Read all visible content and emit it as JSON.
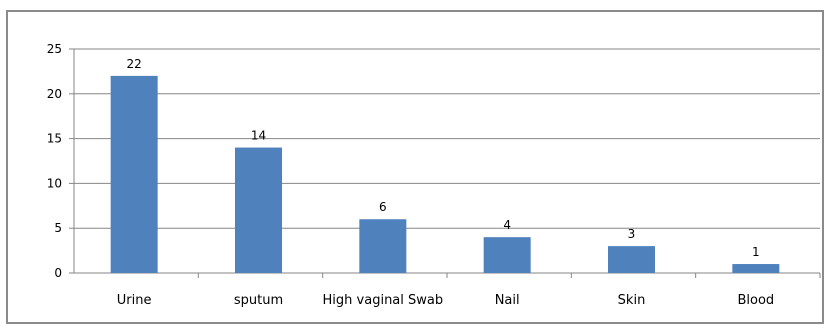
{
  "chart_data": {
    "type": "bar",
    "categories": [
      "Urine",
      "sputum",
      "High vaginal Swab",
      "Nail",
      "Skin",
      "Blood"
    ],
    "values": [
      22,
      14,
      6,
      4,
      3,
      1
    ],
    "title": "",
    "xlabel": "",
    "ylabel": "",
    "ylim": [
      0,
      25
    ],
    "yticks": [
      0,
      5,
      10,
      15,
      20,
      25
    ],
    "grid": true,
    "legend": "none",
    "bar_color": "#4f81bd",
    "grid_color": "#868686"
  }
}
